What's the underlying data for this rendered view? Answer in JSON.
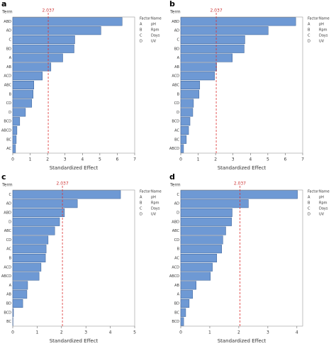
{
  "chart_data": [
    {
      "type": "bar",
      "panel_label": "a",
      "y_label": "Term",
      "x_label": "Standardized Effect",
      "reference_value": 2.037,
      "color": "#6e99d4",
      "categories": [
        "ABD",
        "AD",
        "C",
        "BD",
        "A",
        "AB",
        "ACD",
        "ABC",
        "B",
        "CD",
        "D",
        "BCD",
        "ABCD",
        "BC",
        "AC"
      ],
      "values": [
        6.28,
        5.06,
        3.56,
        3.52,
        2.87,
        2.19,
        1.7,
        1.21,
        1.17,
        1.09,
        0.73,
        0.4,
        0.24,
        0.2,
        0.16
      ],
      "xlim": [
        0,
        7
      ],
      "xticks": [
        0,
        1,
        2,
        3,
        4,
        5,
        6,
        7
      ],
      "factors": {
        "header": [
          "Factor",
          "Name"
        ],
        "rows": [
          [
            "A",
            "pH"
          ],
          [
            "B",
            "Rpm"
          ],
          [
            "C",
            "Days"
          ],
          [
            "D",
            "UV"
          ]
        ]
      }
    },
    {
      "type": "bar",
      "panel_label": "b",
      "y_label": "Term",
      "x_label": "Standardized Effect",
      "reference_value": 2.037,
      "color": "#6e99d4",
      "categories": [
        "ABD",
        "AD",
        "C",
        "BD",
        "A",
        "AB",
        "ACD",
        "ABC",
        "B",
        "CD",
        "D",
        "BCD",
        "AC",
        "BC",
        "ABCD"
      ],
      "values": [
        6.6,
        5.02,
        3.68,
        3.64,
        2.96,
        2.06,
        1.94,
        1.09,
        1.05,
        0.73,
        0.69,
        0.53,
        0.45,
        0.32,
        0.16
      ],
      "xlim": [
        0,
        7
      ],
      "xticks": [
        0,
        1,
        2,
        3,
        4,
        5,
        6,
        7
      ],
      "factors": {
        "header": [
          "Factor",
          "Name"
        ],
        "rows": [
          [
            "A",
            "pH"
          ],
          [
            "B",
            "Rpm"
          ],
          [
            "C",
            "Days"
          ],
          [
            "D",
            "UV"
          ]
        ]
      }
    },
    {
      "type": "bar",
      "panel_label": "c",
      "y_label": "Term",
      "x_label": "Standardized Effect",
      "reference_value": 2.037,
      "color": "#6e99d4",
      "categories": [
        "C",
        "AD",
        "ABD",
        "D",
        "ABC",
        "CD",
        "AC",
        "B",
        "ACD",
        "ABCD",
        "A",
        "AB",
        "BD",
        "BCD",
        "BC"
      ],
      "values": [
        4.42,
        2.65,
        2.12,
        1.92,
        1.72,
        1.45,
        1.37,
        1.34,
        1.16,
        1.08,
        0.61,
        0.58,
        0.41,
        0.03,
        0.01
      ],
      "xlim": [
        0,
        5
      ],
      "xticks": [
        0,
        1,
        2,
        3,
        4,
        5
      ],
      "factors": {
        "header": [
          "Factor",
          "Name"
        ],
        "rows": [
          [
            "A",
            "pH"
          ],
          [
            "B",
            "Rpm"
          ],
          [
            "C",
            "Days"
          ],
          [
            "D",
            "UV"
          ]
        ]
      }
    },
    {
      "type": "bar",
      "panel_label": "d",
      "y_label": "Term",
      "x_label": "Standardized Effect",
      "reference_value": 2.037,
      "color": "#6e99d4",
      "categories": [
        "C",
        "AD",
        "D",
        "ABD",
        "ABC",
        "CD",
        "B",
        "AC",
        "ACD",
        "ABCD",
        "AB",
        "A",
        "BD",
        "BC",
        "BCD"
      ],
      "values": [
        4.02,
        2.33,
        1.77,
        1.75,
        1.55,
        1.45,
        1.41,
        1.24,
        1.09,
        1.02,
        0.53,
        0.41,
        0.29,
        0.17,
        0.1
      ],
      "xlim": [
        0,
        4.2
      ],
      "xticks": [
        0,
        1,
        2,
        3,
        4
      ],
      "factors": {
        "header": [
          "Factor",
          "Name"
        ],
        "rows": [
          [
            "A",
            "pH"
          ],
          [
            "B",
            "Rpm"
          ],
          [
            "C",
            "Days"
          ],
          [
            "D",
            "UV"
          ]
        ]
      }
    }
  ]
}
